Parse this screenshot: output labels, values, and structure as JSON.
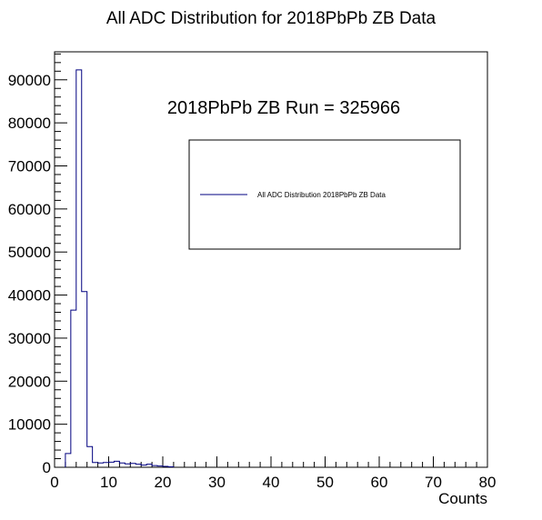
{
  "chart_data": {
    "type": "bar",
    "title": "All ADC Distribution for 2018PbPb ZB Data",
    "xlabel": "Counts",
    "ylabel": "",
    "xlim": [
      0,
      80
    ],
    "ylim": [
      0,
      96500
    ],
    "x_ticks": [
      0,
      10,
      20,
      30,
      40,
      50,
      60,
      70,
      80
    ],
    "y_ticks": [
      0,
      10000,
      20000,
      30000,
      40000,
      50000,
      60000,
      70000,
      80000,
      90000
    ],
    "bin_width": 1,
    "series": [
      {
        "name": "All ADC Distribution 2018PbPb ZB Data",
        "color": "#000080",
        "bin_edges": [
          2,
          3,
          4,
          5,
          6,
          7,
          8,
          9,
          10,
          11,
          12,
          13,
          14,
          15,
          16,
          17,
          18,
          19,
          20,
          21,
          22
        ],
        "values": [
          3200,
          36500,
          92300,
          40800,
          4800,
          1100,
          1000,
          1100,
          1200,
          1400,
          1000,
          800,
          900,
          700,
          500,
          700,
          400,
          300,
          200,
          100
        ]
      }
    ],
    "annotation": "2018PbPb ZB Run = 325966",
    "legend": {
      "entries": [
        "All ADC Distribution 2018PbPb ZB Data"
      ],
      "placement": "upper-right"
    },
    "grid": false
  }
}
